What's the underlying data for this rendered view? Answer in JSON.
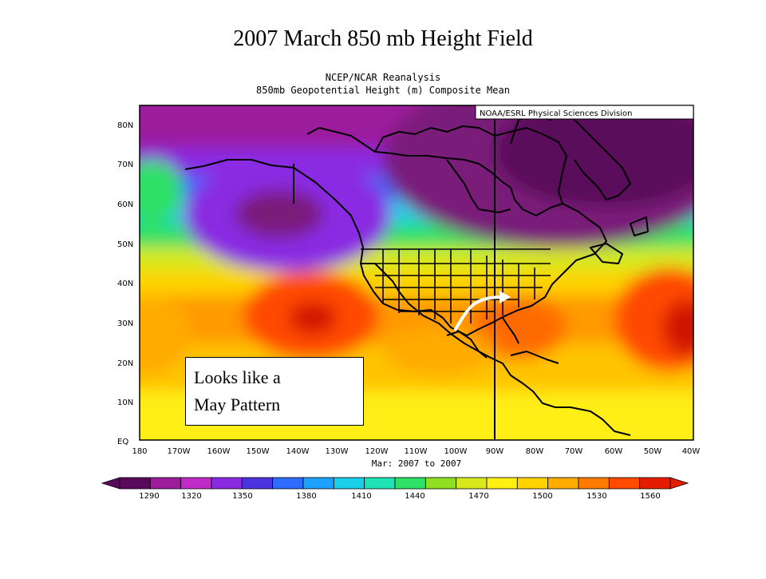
{
  "slide_title": "2007 March 850 mb Height Field",
  "map": {
    "header_line1": "NCEP/NCAR Reanalysis",
    "header_line2": "850mb Geopotential Height (m) Composite Mean",
    "credit": "NOAA/ESRL Physical Sciences Division",
    "date_range": "Mar: 2007 to 2007",
    "lat_labels": [
      "80N",
      "70N",
      "60N",
      "50N",
      "40N",
      "30N",
      "20N",
      "10N",
      "EQ"
    ],
    "lon_labels": [
      "180",
      "170W",
      "160W",
      "150W",
      "140W",
      "130W",
      "120W",
      "110W",
      "100W",
      "90W",
      "80W",
      "70W",
      "60W",
      "50W",
      "40W"
    ],
    "colorbar": {
      "tick_labels": [
        "1290",
        "1320",
        "1350",
        "1380",
        "1410",
        "1440",
        "1470",
        "1500",
        "1530",
        "1560"
      ],
      "colors": [
        "#5a0a5a",
        "#9c1c9c",
        "#c02ac6",
        "#8a2be2",
        "#4b33e0",
        "#2f6bff",
        "#1ea0ff",
        "#19cfe9",
        "#1ee3b4",
        "#2ee066",
        "#8fe021",
        "#d8e81c",
        "#ffef12",
        "#ffd200",
        "#ffab00",
        "#ff7a00",
        "#ff4a00",
        "#e51c00"
      ]
    }
  },
  "annotation": {
    "line1": "Looks like a",
    "line2": "May Pattern"
  }
}
